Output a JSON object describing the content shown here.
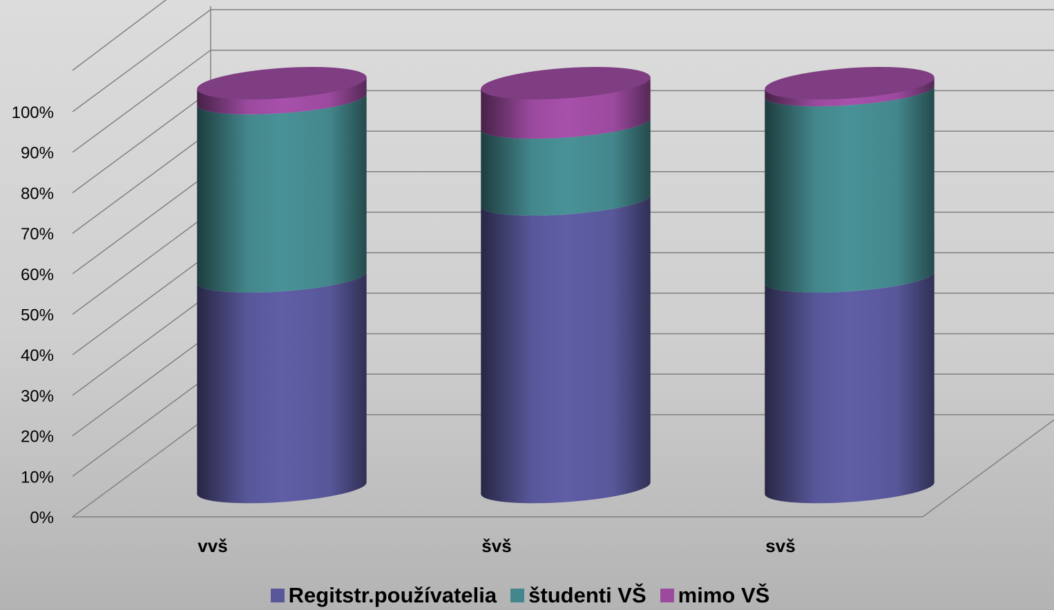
{
  "chart_data": {
    "type": "bar",
    "stacked": true,
    "categories": [
      "vvš",
      "švš",
      "svš"
    ],
    "series": [
      {
        "name": "Regitstr.používatelia",
        "color": "#58579a",
        "values": [
          52,
          71,
          52
        ]
      },
      {
        "name": "študenti VŠ",
        "color": "#43878c",
        "values": [
          44,
          19,
          46
        ]
      },
      {
        "name": "mimo VŠ",
        "color": "#9b4a9e",
        "values": [
          4,
          10,
          2
        ]
      }
    ],
    "yticks": [
      "0%",
      "10%",
      "20%",
      "30%",
      "40%",
      "50%",
      "60%",
      "70%",
      "80%",
      "90%",
      "100%"
    ],
    "ylim": [
      0,
      100
    ],
    "grid": true,
    "legend_position": "bottom"
  }
}
